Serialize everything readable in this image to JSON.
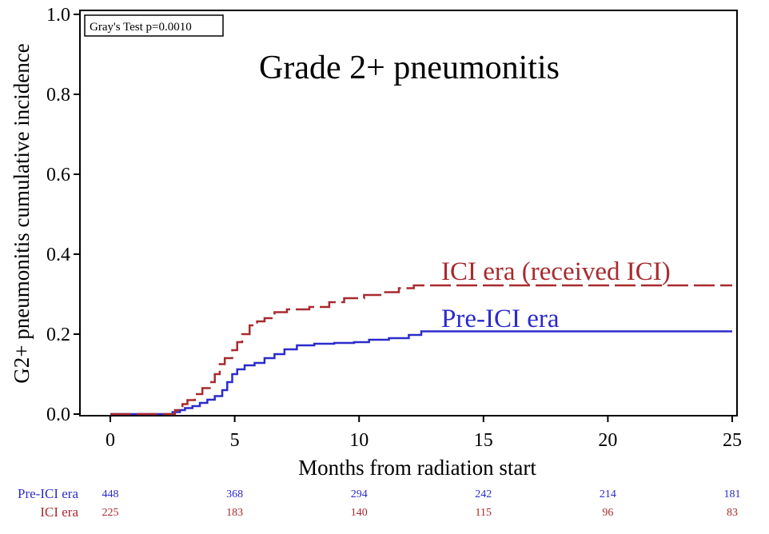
{
  "chart_data": {
    "type": "line",
    "title": "Grade 2+ pneumonitis",
    "annotation": "Gray's Test p=0.0010",
    "xlabel": "Months from radiation start",
    "ylabel": "G2+ pneumonitis cumulative incidence",
    "xlim": [
      0,
      25
    ],
    "ylim": [
      0,
      1.0
    ],
    "x_ticks": [
      0,
      5,
      10,
      15,
      20,
      25
    ],
    "x_tick_labels": [
      "0",
      "5",
      "10",
      "15",
      "20",
      "25"
    ],
    "y_ticks": [
      0,
      0.2,
      0.4,
      0.6,
      0.8,
      1.0
    ],
    "y_tick_labels": [
      "0.0",
      "0.2",
      "0.4",
      "0.6",
      "0.8",
      "1.0"
    ],
    "grid": false,
    "series": [
      {
        "name": "Pre-ICI era",
        "label": "Pre-ICI era",
        "color": "#2b2bcc",
        "dash": "solid",
        "points": [
          [
            0,
            0
          ],
          [
            2.2,
            0
          ],
          [
            2.5,
            0.005
          ],
          [
            2.8,
            0.01
          ],
          [
            3.0,
            0.015
          ],
          [
            3.3,
            0.02
          ],
          [
            3.6,
            0.028
          ],
          [
            3.9,
            0.036
          ],
          [
            4.2,
            0.045
          ],
          [
            4.5,
            0.06
          ],
          [
            4.7,
            0.08
          ],
          [
            4.9,
            0.1
          ],
          [
            5.1,
            0.112
          ],
          [
            5.4,
            0.122
          ],
          [
            5.8,
            0.128
          ],
          [
            6.2,
            0.14
          ],
          [
            6.6,
            0.15
          ],
          [
            7.0,
            0.162
          ],
          [
            7.5,
            0.172
          ],
          [
            8.2,
            0.176
          ],
          [
            9.0,
            0.178
          ],
          [
            9.8,
            0.18
          ],
          [
            10.4,
            0.186
          ],
          [
            11.2,
            0.19
          ],
          [
            12.0,
            0.198
          ],
          [
            12.5,
            0.207
          ],
          [
            25,
            0.207
          ]
        ]
      },
      {
        "name": "ICI era",
        "label": "ICI era (received ICI)",
        "color": "#a82a2e",
        "dash": "dashed",
        "points": [
          [
            0,
            0
          ],
          [
            2.3,
            0
          ],
          [
            2.6,
            0.01
          ],
          [
            2.9,
            0.025
          ],
          [
            3.1,
            0.035
          ],
          [
            3.4,
            0.05
          ],
          [
            3.7,
            0.065
          ],
          [
            4.0,
            0.08
          ],
          [
            4.2,
            0.1
          ],
          [
            4.4,
            0.125
          ],
          [
            4.6,
            0.14
          ],
          [
            4.9,
            0.16
          ],
          [
            5.1,
            0.18
          ],
          [
            5.3,
            0.2
          ],
          [
            5.6,
            0.222
          ],
          [
            5.9,
            0.232
          ],
          [
            6.2,
            0.24
          ],
          [
            6.6,
            0.255
          ],
          [
            7.1,
            0.262
          ],
          [
            8.0,
            0.268
          ],
          [
            8.8,
            0.28
          ],
          [
            9.4,
            0.29
          ],
          [
            10.2,
            0.298
          ],
          [
            11.0,
            0.305
          ],
          [
            11.6,
            0.315
          ],
          [
            12.2,
            0.322
          ],
          [
            25,
            0.322
          ]
        ]
      }
    ],
    "risk_table": {
      "times": [
        0,
        5,
        10,
        15,
        20,
        25
      ],
      "rows": [
        {
          "label": "Pre-ICI era",
          "color": "#2b2bcc",
          "values": [
            "448",
            "368",
            "294",
            "242",
            "214",
            "181"
          ]
        },
        {
          "label": "ICI era",
          "color": "#a82a2e",
          "values": [
            "225",
            "183",
            "140",
            "115",
            "96",
            "83"
          ]
        }
      ]
    }
  }
}
